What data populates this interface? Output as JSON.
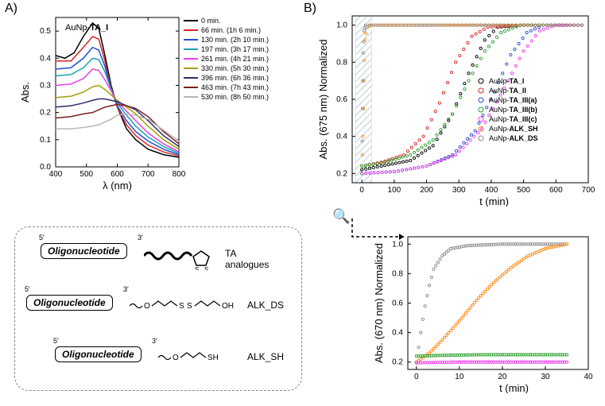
{
  "labels": {
    "panelA": "A)",
    "panelB": "B)",
    "chartA_title": "AuNp-TA_I",
    "chartA_xlabel": "λ (nm)",
    "chartA_ylabel": "Abs.",
    "chartB_xlabel": "t (min)",
    "chartB_ylabel": "Abs. (675 nm) Normalized",
    "chartB2_xlabel": "t (min)",
    "chartB2_ylabel": "Abs. (670 nm) Normalized",
    "oligo": "Oligonucleotide",
    "ta_label": "TA analogues",
    "alk_ds": "ALK_DS",
    "alk_sh": "ALK_SH",
    "five": "5′",
    "three": "3′"
  },
  "chartA": {
    "type": "line",
    "xlim": [
      400,
      800
    ],
    "ylim": [
      0,
      0.55
    ],
    "xticks": [
      400,
      500,
      600,
      700,
      800
    ],
    "yticks": [
      0.0,
      0.1,
      0.2,
      0.3,
      0.4,
      0.5
    ],
    "title_fontsize": 11,
    "label_fontsize": 13,
    "background": "#ffffff",
    "series": [
      {
        "label": "0 min.",
        "color": "#000000",
        "data": [
          [
            400,
            0.41
          ],
          [
            430,
            0.4
          ],
          [
            460,
            0.42
          ],
          [
            490,
            0.48
          ],
          [
            520,
            0.53
          ],
          [
            540,
            0.51
          ],
          [
            560,
            0.41
          ],
          [
            580,
            0.3
          ],
          [
            600,
            0.22
          ],
          [
            630,
            0.14
          ],
          [
            660,
            0.1
          ],
          [
            700,
            0.065
          ],
          [
            750,
            0.045
          ],
          [
            800,
            0.035
          ]
        ]
      },
      {
        "label": "66 min. (1h 6 min.)",
        "color": "#d62728",
        "data": [
          [
            400,
            0.39
          ],
          [
            450,
            0.39
          ],
          [
            490,
            0.44
          ],
          [
            520,
            0.48
          ],
          [
            540,
            0.47
          ],
          [
            560,
            0.39
          ],
          [
            580,
            0.29
          ],
          [
            600,
            0.22
          ],
          [
            630,
            0.155
          ],
          [
            660,
            0.115
          ],
          [
            700,
            0.08
          ],
          [
            750,
            0.055
          ],
          [
            800,
            0.04
          ]
        ]
      },
      {
        "label": "130 min. (2h 10 min.)",
        "color": "#1f4fd6",
        "data": [
          [
            400,
            0.36
          ],
          [
            450,
            0.365
          ],
          [
            490,
            0.4
          ],
          [
            520,
            0.44
          ],
          [
            540,
            0.43
          ],
          [
            560,
            0.37
          ],
          [
            580,
            0.285
          ],
          [
            600,
            0.225
          ],
          [
            630,
            0.17
          ],
          [
            660,
            0.13
          ],
          [
            700,
            0.095
          ],
          [
            750,
            0.065
          ],
          [
            800,
            0.045
          ]
        ]
      },
      {
        "label": "197 min. (3h 17 min.)",
        "color": "#17a2b2",
        "data": [
          [
            400,
            0.335
          ],
          [
            450,
            0.34
          ],
          [
            490,
            0.365
          ],
          [
            520,
            0.4
          ],
          [
            540,
            0.395
          ],
          [
            560,
            0.35
          ],
          [
            580,
            0.285
          ],
          [
            600,
            0.235
          ],
          [
            630,
            0.19
          ],
          [
            660,
            0.15
          ],
          [
            700,
            0.11
          ],
          [
            750,
            0.075
          ],
          [
            800,
            0.05
          ]
        ]
      },
      {
        "label": "261 min. (4h 21 min.)",
        "color": "#e83ee8",
        "data": [
          [
            400,
            0.3
          ],
          [
            450,
            0.305
          ],
          [
            490,
            0.325
          ],
          [
            520,
            0.36
          ],
          [
            540,
            0.355
          ],
          [
            560,
            0.32
          ],
          [
            580,
            0.28
          ],
          [
            600,
            0.24
          ],
          [
            630,
            0.205
          ],
          [
            660,
            0.17
          ],
          [
            700,
            0.125
          ],
          [
            750,
            0.085
          ],
          [
            800,
            0.055
          ]
        ]
      },
      {
        "label": "330 min. (5h 30 min.)",
        "color": "#a1a100",
        "data": [
          [
            400,
            0.255
          ],
          [
            450,
            0.26
          ],
          [
            490,
            0.275
          ],
          [
            520,
            0.295
          ],
          [
            540,
            0.3
          ],
          [
            560,
            0.285
          ],
          [
            580,
            0.265
          ],
          [
            600,
            0.245
          ],
          [
            630,
            0.22
          ],
          [
            660,
            0.195
          ],
          [
            700,
            0.15
          ],
          [
            750,
            0.1
          ],
          [
            800,
            0.065
          ]
        ]
      },
      {
        "label": "396 min. (6h 36 min.)",
        "color": "#2d2d70",
        "data": [
          [
            400,
            0.22
          ],
          [
            450,
            0.225
          ],
          [
            490,
            0.235
          ],
          [
            520,
            0.245
          ],
          [
            540,
            0.25
          ],
          [
            560,
            0.25
          ],
          [
            580,
            0.245
          ],
          [
            600,
            0.24
          ],
          [
            630,
            0.225
          ],
          [
            660,
            0.21
          ],
          [
            700,
            0.17
          ],
          [
            750,
            0.115
          ],
          [
            800,
            0.075
          ]
        ]
      },
      {
        "label": "463 min. (7h 43 min.)",
        "color": "#7a1f1f",
        "data": [
          [
            400,
            0.18
          ],
          [
            450,
            0.185
          ],
          [
            490,
            0.195
          ],
          [
            520,
            0.2
          ],
          [
            540,
            0.21
          ],
          [
            560,
            0.22
          ],
          [
            580,
            0.225
          ],
          [
            600,
            0.23
          ],
          [
            630,
            0.225
          ],
          [
            660,
            0.215
          ],
          [
            700,
            0.185
          ],
          [
            750,
            0.13
          ],
          [
            800,
            0.085
          ]
        ]
      },
      {
        "label": "530 min. (8h 50 min.)",
        "color": "#b5b5b5",
        "data": [
          [
            400,
            0.14
          ],
          [
            450,
            0.14
          ],
          [
            490,
            0.145
          ],
          [
            520,
            0.15
          ],
          [
            540,
            0.155
          ],
          [
            560,
            0.165
          ],
          [
            580,
            0.175
          ],
          [
            600,
            0.19
          ],
          [
            630,
            0.195
          ],
          [
            660,
            0.19
          ],
          [
            700,
            0.175
          ],
          [
            750,
            0.135
          ],
          [
            800,
            0.095
          ]
        ]
      }
    ]
  },
  "chartB": {
    "type": "scatter-line",
    "xlim": [
      -30,
      700
    ],
    "ylim": [
      0.15,
      1.05
    ],
    "xticks": [
      0,
      100,
      200,
      300,
      400,
      500,
      600,
      700
    ],
    "yticks": [
      0.2,
      0.4,
      0.6,
      0.8,
      1.0
    ],
    "label_fontsize": 12,
    "hatch_region": {
      "x": [
        -20,
        30
      ],
      "color": "#b8cfdb"
    },
    "series": [
      {
        "label": "AuNp-TA_I",
        "color": "#000000",
        "data": [
          [
            0,
            0.22
          ],
          [
            60,
            0.24
          ],
          [
            150,
            0.27
          ],
          [
            220,
            0.35
          ],
          [
            280,
            0.52
          ],
          [
            330,
            0.74
          ],
          [
            380,
            0.92
          ],
          [
            420,
            0.99
          ],
          [
            500,
            1.0
          ],
          [
            680,
            1.0
          ]
        ]
      },
      {
        "label": "AuNp-TA_II",
        "color": "#d62728",
        "data": [
          [
            0,
            0.24
          ],
          [
            60,
            0.26
          ],
          [
            130,
            0.3
          ],
          [
            190,
            0.4
          ],
          [
            240,
            0.58
          ],
          [
            290,
            0.8
          ],
          [
            340,
            0.94
          ],
          [
            390,
            0.99
          ],
          [
            500,
            1.0
          ],
          [
            680,
            1.0
          ]
        ]
      },
      {
        "label": "AuNp-TA_III(a)",
        "color": "#1f4fd6",
        "data": [
          [
            0,
            0.2
          ],
          [
            100,
            0.21
          ],
          [
            200,
            0.24
          ],
          [
            280,
            0.3
          ],
          [
            350,
            0.43
          ],
          [
            410,
            0.64
          ],
          [
            460,
            0.84
          ],
          [
            510,
            0.96
          ],
          [
            560,
            1.0
          ],
          [
            680,
            1.0
          ]
        ]
      },
      {
        "label": "AuNp-TA_III(b)",
        "color": "#2ca02c",
        "data": [
          [
            0,
            0.24
          ],
          [
            70,
            0.26
          ],
          [
            150,
            0.3
          ],
          [
            220,
            0.38
          ],
          [
            280,
            0.52
          ],
          [
            330,
            0.7
          ],
          [
            380,
            0.86
          ],
          [
            430,
            0.96
          ],
          [
            490,
            1.0
          ],
          [
            680,
            1.0
          ]
        ]
      },
      {
        "label": "AuNp-TA_III(c)",
        "color": "#e83ee8",
        "data": [
          [
            0,
            0.2
          ],
          [
            100,
            0.21
          ],
          [
            200,
            0.24
          ],
          [
            290,
            0.3
          ],
          [
            370,
            0.44
          ],
          [
            440,
            0.66
          ],
          [
            500,
            0.86
          ],
          [
            550,
            0.97
          ],
          [
            600,
            1.0
          ],
          [
            680,
            1.0
          ]
        ]
      },
      {
        "label": "AuNp-ALK_SH",
        "color": "#ff8c1a",
        "data": [
          [
            0,
            0.2
          ],
          [
            3,
            0.4
          ],
          [
            6,
            0.7
          ],
          [
            10,
            0.92
          ],
          [
            15,
            0.99
          ],
          [
            30,
            1.0
          ],
          [
            680,
            1.0
          ]
        ]
      },
      {
        "label": "AuNp-ALK_DS",
        "color": "#8c8c8c",
        "data": [
          [
            0,
            0.2
          ],
          [
            2,
            0.55
          ],
          [
            4,
            0.85
          ],
          [
            7,
            0.97
          ],
          [
            12,
            1.0
          ],
          [
            680,
            1.0
          ]
        ]
      }
    ]
  },
  "chartB2": {
    "type": "scatter-line",
    "xlim": [
      -2,
      40
    ],
    "ylim": [
      0.15,
      1.05
    ],
    "xticks": [
      0,
      10,
      20,
      30,
      40
    ],
    "yticks": [
      0.2,
      0.4,
      0.6,
      0.8,
      1.0
    ],
    "series": [
      {
        "color": "#8c8c8c",
        "data": [
          [
            0,
            0.2
          ],
          [
            1,
            0.4
          ],
          [
            2,
            0.58
          ],
          [
            3,
            0.72
          ],
          [
            4,
            0.83
          ],
          [
            6,
            0.92
          ],
          [
            8,
            0.97
          ],
          [
            12,
            0.99
          ],
          [
            20,
            1.0
          ],
          [
            35,
            1.0
          ]
        ]
      },
      {
        "color": "#ff8c1a",
        "data": [
          [
            0,
            0.2
          ],
          [
            3,
            0.26
          ],
          [
            6,
            0.35
          ],
          [
            10,
            0.48
          ],
          [
            14,
            0.62
          ],
          [
            18,
            0.74
          ],
          [
            22,
            0.84
          ],
          [
            26,
            0.92
          ],
          [
            30,
            0.97
          ],
          [
            35,
            1.0
          ]
        ]
      },
      {
        "color": "#2ca02c",
        "data": [
          [
            0,
            0.24
          ],
          [
            5,
            0.245
          ],
          [
            15,
            0.25
          ],
          [
            25,
            0.25
          ],
          [
            35,
            0.25
          ]
        ]
      },
      {
        "color": "#e83ee8",
        "data": [
          [
            0,
            0.195
          ],
          [
            10,
            0.2
          ],
          [
            20,
            0.2
          ],
          [
            30,
            0.2
          ],
          [
            35,
            0.2
          ]
        ]
      }
    ]
  }
}
